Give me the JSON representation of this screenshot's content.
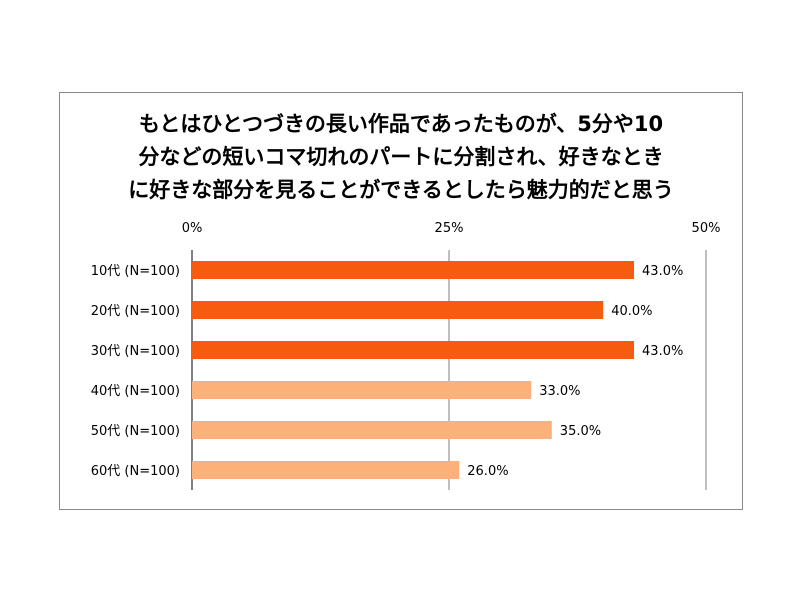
{
  "chart_data": {
    "type": "bar",
    "orientation": "horizontal",
    "title_lines": [
      "もとはひとつづきの長い作品であったものが、5分や10",
      "分などの短いコマ切れのパートに分割され、好きなとき",
      "に好きな部分を見ることができるとしたら魅力的だと思う"
    ],
    "categories": [
      "10代 (N=100)",
      "20代 (N=100)",
      "30代 (N=100)",
      "40代 (N=100)",
      "50代 (N=100)",
      "60代 (N=100)"
    ],
    "values": [
      43.0,
      40.0,
      43.0,
      33.0,
      35.0,
      26.0
    ],
    "value_labels": [
      "43.0%",
      "40.0%",
      "43.0%",
      "33.0%",
      "35.0%",
      "26.0%"
    ],
    "xlim": [
      0,
      50
    ],
    "ticks": [
      0,
      25,
      50
    ],
    "tick_labels": [
      "0%",
      "25%",
      "50%"
    ],
    "tick_position": "top",
    "grid": true,
    "legend": "none",
    "colors": [
      "#F65B0E",
      "#F65B0E",
      "#F65B0E",
      "#FCB07A",
      "#FCB07A",
      "#FCB07A"
    ],
    "gridline_color": "#7f7f7f"
  }
}
